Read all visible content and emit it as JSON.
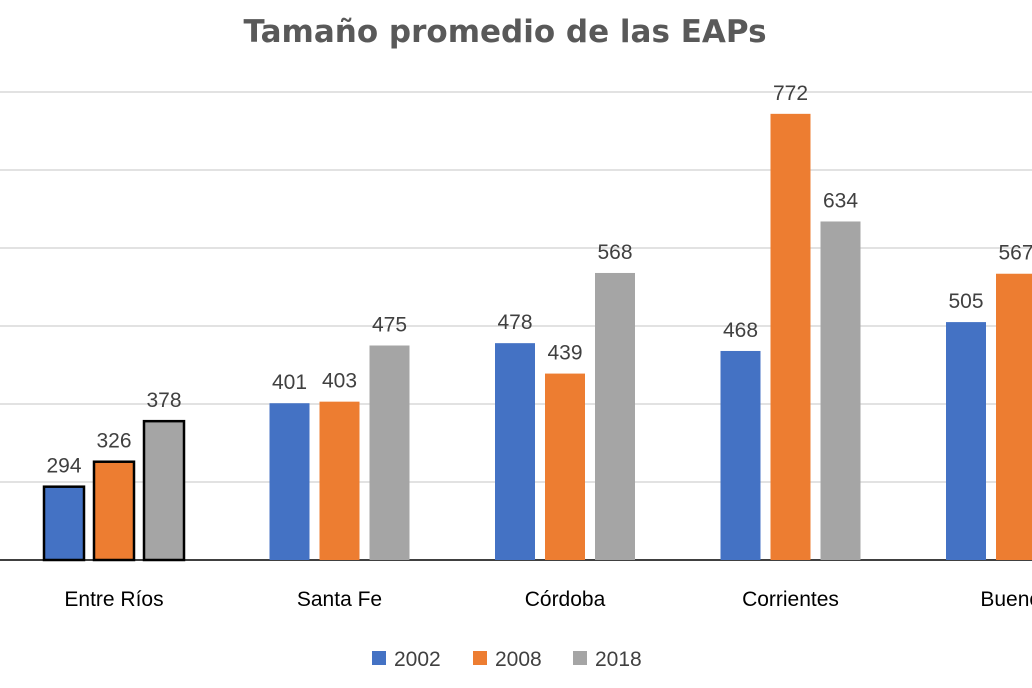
{
  "chart_data": {
    "type": "bar",
    "title": "Tamaño promedio de las EAPs",
    "categories": [
      "Entre Ríos",
      "Santa Fe",
      "Córdoba",
      "Corrientes",
      "Buenos"
    ],
    "series": [
      {
        "name": "2002",
        "color": "#4472C4",
        "values": [
          294,
          401,
          478,
          468,
          505
        ]
      },
      {
        "name": "2008",
        "color": "#ED7D31",
        "values": [
          326,
          403,
          439,
          772,
          567
        ]
      },
      {
        "name": "2018",
        "color": "#A5A5A5",
        "values": [
          378,
          475,
          568,
          634,
          null
        ]
      }
    ],
    "ylim": [
      200,
      800
    ],
    "ygrid_step": 100,
    "grid": true,
    "y_tick_labels_visible": false,
    "legend_placement": "bottom",
    "highlighted_category": "Entre Ríos",
    "highlight_outline_color": "#000000"
  }
}
